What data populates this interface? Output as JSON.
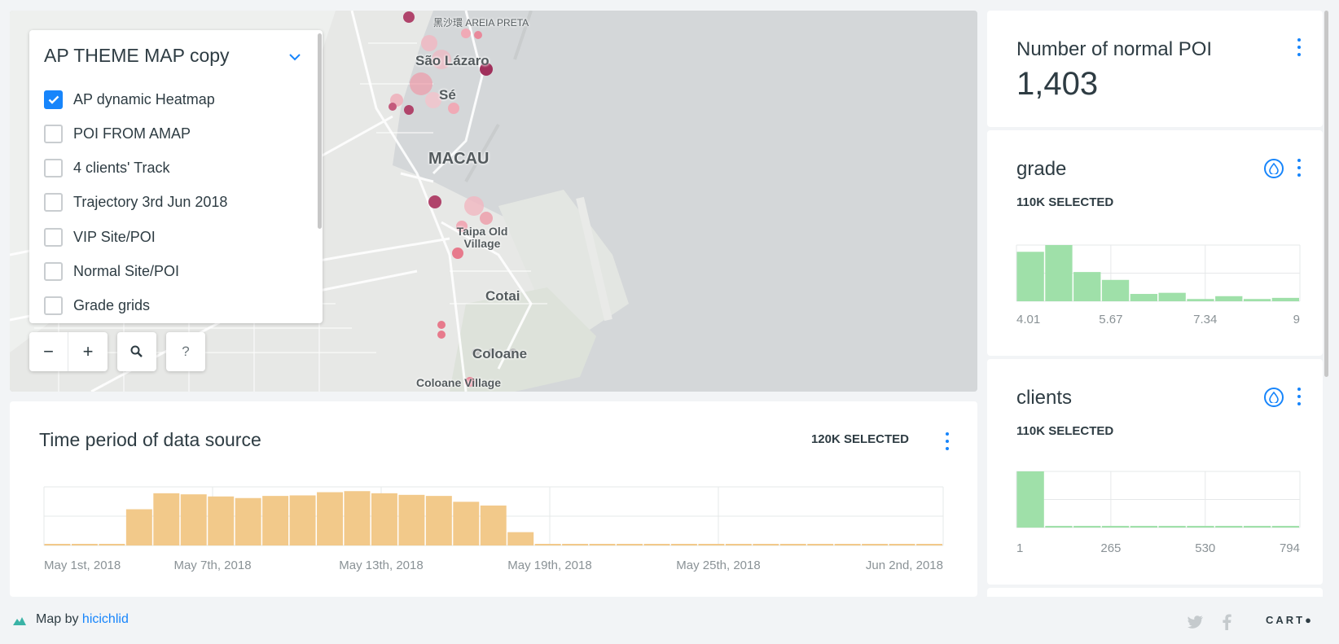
{
  "map": {
    "labels": {
      "areia_preta": "黑沙環 AREIA PRETA",
      "sao_lazaro": "São Lázaro",
      "se": "Sé",
      "macau": "MACAU",
      "taipa_old_village": "Taipa Old Village",
      "cotai": "Cotai",
      "coloane": "Coloane",
      "coloane_village": "Coloane Village"
    },
    "zoom_out_label": "−",
    "zoom_in_label": "+",
    "search_label": "🔍",
    "help_label": "?"
  },
  "layer_panel": {
    "title": "AP THEME MAP copy",
    "layers": [
      {
        "label": "AP dynamic Heatmap",
        "checked": true
      },
      {
        "label": "POI FROM AMAP",
        "checked": false
      },
      {
        "label": "4 clients' Track",
        "checked": false
      },
      {
        "label": "Trajectory 3rd Jun 2018",
        "checked": false
      },
      {
        "label": "VIP Site/POI",
        "checked": false
      },
      {
        "label": "Normal Site/POI",
        "checked": false
      },
      {
        "label": "Grade grids",
        "checked": false
      }
    ]
  },
  "time_widget": {
    "title": "Time period of data source",
    "selected": "120K SELECTED",
    "ticks": [
      "May 1st, 2018",
      "May 7th, 2018",
      "May 13th, 2018",
      "May 19th, 2018",
      "May 25th, 2018",
      "Jun 2nd, 2018"
    ]
  },
  "widgets": {
    "normal_poi": {
      "title": "Number of normal POI",
      "value": "1,403"
    },
    "grade": {
      "title": "grade",
      "selected": "110K SELECTED",
      "ticks": [
        "4.01",
        "5.67",
        "7.34",
        "9"
      ]
    },
    "clients": {
      "title": "clients",
      "selected": "110K SELECTED",
      "ticks": [
        "1",
        "265",
        "530",
        "794"
      ]
    }
  },
  "chart_data": [
    {
      "type": "bar",
      "title": "Time period of data source",
      "x_ticks": [
        "May 1st, 2018",
        "May 7th, 2018",
        "May 13th, 2018",
        "May 19th, 2018",
        "May 25th, 2018",
        "Jun 2nd, 2018"
      ],
      "values": [
        2,
        2,
        2,
        68,
        98,
        96,
        92,
        89,
        93,
        94,
        100,
        102,
        98,
        95,
        93,
        82,
        75,
        25,
        2,
        0,
        2,
        2,
        0,
        2,
        2,
        2,
        2,
        2,
        2,
        2,
        2,
        2,
        2
      ],
      "ylim": [
        0,
        110
      ],
      "color": "#f2c98a",
      "grid": true
    },
    {
      "type": "bar",
      "title": "grade",
      "x_ticks": [
        "4.01",
        "5.67",
        "7.34",
        "9"
      ],
      "values": [
        88,
        100,
        52,
        38,
        13,
        15,
        4,
        9,
        4,
        6
      ],
      "ylim": [
        0,
        100
      ],
      "color": "#9fe0a9",
      "grid": true
    },
    {
      "type": "bar",
      "title": "clients",
      "x_ticks": [
        "1",
        "265",
        "530",
        "794"
      ],
      "values": [
        100,
        3,
        3,
        3,
        3,
        3,
        3,
        3,
        3,
        3
      ],
      "ylim": [
        0,
        100
      ],
      "color": "#9fe0a9",
      "grid": true
    }
  ],
  "footer": {
    "map_by": "Map by",
    "user": "hicichlid",
    "brand": "CART●"
  },
  "colors": {
    "accent": "#1785fb",
    "histogram_time": "#f2c98a",
    "histogram_green": "#9fe0a9"
  }
}
